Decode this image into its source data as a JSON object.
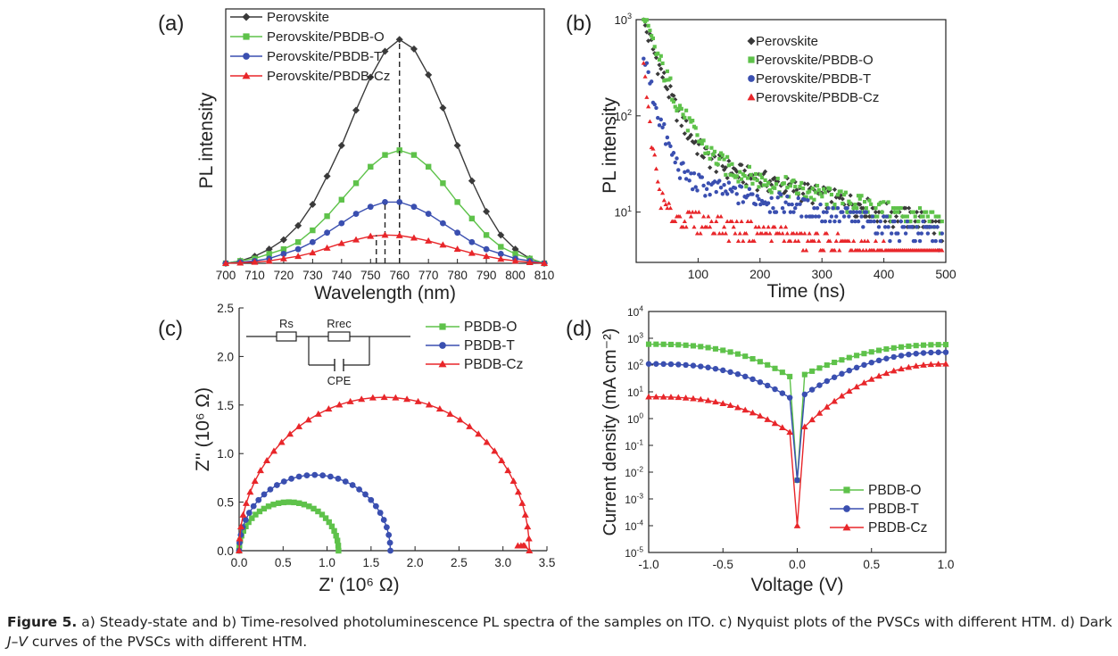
{
  "figure": {
    "panel_labels": [
      "(a)",
      "(b)",
      "(c)",
      "(d)"
    ],
    "caption": {
      "label": "Figure 5.",
      "text_1": " a) Steady-state and b) Time-resolved photoluminescence PL spectra of the samples on ITO. c) Nyquist plots of the PVSCs with different HTM. d) Dark ",
      "text_italic": "J–V",
      "text_2": " curves of the PVSCs with different HTM."
    },
    "colors": {
      "black": "#3a3a3a",
      "green": "#5ec24a",
      "blue": "#3a4fb0",
      "red": "#e8262a"
    },
    "circuit": {
      "rs": "Rs",
      "rrec": "Rrec",
      "cpe": "CPE"
    }
  },
  "chart_data": [
    {
      "panel": "(a)",
      "type": "line",
      "xlabel": "Wavelength (nm)",
      "ylabel": "PL intensity",
      "xlim": [
        700,
        810
      ],
      "ylim": [
        0,
        1.08
      ],
      "xticks": [
        700,
        710,
        720,
        730,
        740,
        750,
        760,
        770,
        780,
        790,
        800,
        810
      ],
      "x": [
        700,
        705,
        710,
        715,
        720,
        725,
        730,
        735,
        740,
        745,
        750,
        755,
        760,
        765,
        770,
        775,
        780,
        785,
        790,
        795,
        800,
        805,
        810
      ],
      "series": [
        {
          "name": "Perovskite",
          "color": "#3a3a3a",
          "marker": "diamond",
          "peak": 760,
          "values": [
            0.0,
            0.01,
            0.03,
            0.06,
            0.1,
            0.16,
            0.25,
            0.37,
            0.5,
            0.65,
            0.79,
            0.9,
            0.95,
            0.91,
            0.8,
            0.66,
            0.5,
            0.35,
            0.22,
            0.12,
            0.06,
            0.02,
            0.0
          ]
        },
        {
          "name": "Perovskite/PBDB-O",
          "color": "#5ec24a",
          "marker": "square",
          "peak": 760,
          "values": [
            0.0,
            0.01,
            0.02,
            0.04,
            0.06,
            0.09,
            0.14,
            0.2,
            0.27,
            0.34,
            0.41,
            0.46,
            0.48,
            0.46,
            0.41,
            0.34,
            0.26,
            0.19,
            0.12,
            0.07,
            0.04,
            0.02,
            0.0
          ]
        },
        {
          "name": "Perovskite/PBDB-T",
          "color": "#3a4fb0",
          "marker": "circle",
          "peak": 755,
          "values": [
            0.0,
            0.005,
            0.01,
            0.02,
            0.04,
            0.06,
            0.09,
            0.13,
            0.17,
            0.21,
            0.24,
            0.26,
            0.26,
            0.24,
            0.21,
            0.17,
            0.13,
            0.09,
            0.06,
            0.04,
            0.02,
            0.01,
            0.0
          ]
        },
        {
          "name": "Perovskite/PBDB-Cz",
          "color": "#e8262a",
          "marker": "triangle",
          "peak": 752,
          "values": [
            0.0,
            0.002,
            0.005,
            0.01,
            0.02,
            0.03,
            0.045,
            0.065,
            0.085,
            0.1,
            0.115,
            0.12,
            0.118,
            0.108,
            0.095,
            0.078,
            0.06,
            0.043,
            0.03,
            0.018,
            0.01,
            0.004,
            0.0
          ]
        }
      ],
      "legend": "top-left"
    },
    {
      "panel": "(b)",
      "type": "scatter",
      "xlabel": "Time (ns)",
      "ylabel": "PL intensity",
      "xlim": [
        0,
        500
      ],
      "ylim": [
        3,
        1000
      ],
      "yscale": "log",
      "xticks": [
        100,
        200,
        300,
        400,
        500
      ],
      "yticks": [
        {
          "value": 10,
          "base": "10",
          "exp": "1"
        },
        {
          "value": 100,
          "base": "10",
          "exp": "2"
        },
        {
          "value": 1000,
          "base": "10",
          "exp": "3"
        }
      ],
      "series": [
        {
          "name": "Perovskite",
          "color": "#3a3a3a",
          "marker": "diamond",
          "peak": 900,
          "tau": 22,
          "tail": 45,
          "tail_tau": 260
        },
        {
          "name": "Perovskite/PBDB-O",
          "color": "#5ec24a",
          "marker": "square",
          "peak": 950,
          "tau": 25,
          "tail": 42,
          "tail_tau": 280
        },
        {
          "name": "Perovskite/PBDB-T",
          "color": "#3a4fb0",
          "marker": "circle",
          "peak": 400,
          "tau": 15,
          "tail": 25,
          "tail_tau": 320
        },
        {
          "name": "Perovskite/PBDB-Cz",
          "color": "#e8262a",
          "marker": "triangle",
          "peak": 300,
          "tau": 7,
          "tail": 10,
          "tail_tau": 400
        }
      ],
      "legend": "top-right"
    },
    {
      "panel": "(c)",
      "type": "line",
      "xlabel": "Z' (10⁶ Ω)",
      "ylabel": "Z'' (10⁶ Ω)",
      "xlim": [
        0,
        3.5
      ],
      "ylim": [
        0,
        2.5
      ],
      "xticks": [
        "0.0",
        "0.5",
        "1.0",
        "1.5",
        "2.0",
        "2.5",
        "3.0",
        "3.5"
      ],
      "yticks": [
        "0.0",
        "0.5",
        "1.0",
        "1.5",
        "2.0",
        "2.5"
      ],
      "series": [
        {
          "name": "PBDB-O",
          "color": "#5ec24a",
          "marker": "square",
          "r0": 0.0,
          "diameter": 1.13,
          "apex": 0.5
        },
        {
          "name": "PBDB-T",
          "color": "#3a4fb0",
          "marker": "circle",
          "r0": 0.0,
          "diameter": 1.72,
          "apex": 0.78
        },
        {
          "name": "PBDB-Cz",
          "color": "#e8262a",
          "marker": "triangle",
          "r0": 0.0,
          "diameter": 3.3,
          "apex": 1.58
        }
      ],
      "legend": "top-right"
    },
    {
      "panel": "(d)",
      "type": "line",
      "xlabel": "Voltage (V)",
      "ylabel": "Current density (mA cm⁻²)",
      "xlim": [
        -1.0,
        1.0
      ],
      "ylim": [
        1e-05,
        10000
      ],
      "yscale": "log",
      "xticks": [
        "-1.0",
        "-0.5",
        "0.0",
        "0.5",
        "1.0"
      ],
      "yticks": [
        {
          "value": 10000,
          "base": "10",
          "exp": "4"
        },
        {
          "value": 1000,
          "base": "10",
          "exp": "3"
        },
        {
          "value": 100,
          "base": "10",
          "exp": "2"
        },
        {
          "value": 10,
          "base": "10",
          "exp": "1"
        },
        {
          "value": 1,
          "base": "10",
          "exp": "0"
        },
        {
          "value": 0.1,
          "base": "10",
          "exp": "-1"
        },
        {
          "value": 0.01,
          "base": "10",
          "exp": "-2"
        },
        {
          "value": 0.001,
          "base": "10",
          "exp": "-3"
        },
        {
          "value": 0.0001,
          "base": "10",
          "exp": "-4"
        },
        {
          "value": 1e-05,
          "base": "10",
          "exp": "-5"
        }
      ],
      "series": [
        {
          "name": "PBDB-O",
          "color": "#5ec24a",
          "marker": "square",
          "j_neg": 600,
          "j_pos": 580,
          "j_min": 0.005,
          "knee": 25
        },
        {
          "name": "PBDB-T",
          "color": "#3a4fb0",
          "marker": "circle",
          "j_neg": 110,
          "j_pos": 300,
          "j_min": 0.005,
          "knee": 4
        },
        {
          "name": "PBDB-Cz",
          "color": "#e8262a",
          "marker": "triangle",
          "j_neg": 6.5,
          "j_pos": 110,
          "j_min": 0.0001,
          "knee": 0.2
        }
      ],
      "legend": "bottom-right"
    }
  ]
}
